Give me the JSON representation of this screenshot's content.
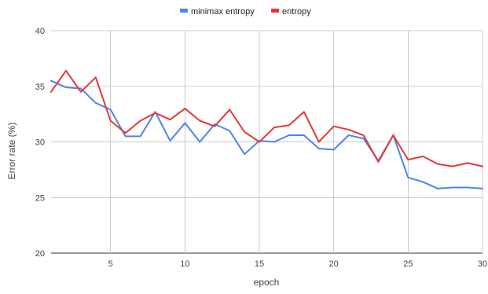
{
  "chart_data": {
    "type": "line",
    "title": "",
    "xlabel": "epoch",
    "ylabel": "Error rate (%)",
    "xlim": [
      1,
      30
    ],
    "ylim": [
      20,
      40
    ],
    "x_ticks": [
      5,
      10,
      15,
      20,
      25,
      30
    ],
    "y_ticks": [
      20,
      25,
      30,
      35,
      40
    ],
    "grid": true,
    "legend_position": "top",
    "x": [
      1,
      2,
      3,
      4,
      5,
      6,
      7,
      8,
      9,
      10,
      11,
      12,
      13,
      14,
      15,
      16,
      17,
      18,
      19,
      20,
      21,
      22,
      23,
      24,
      25,
      26,
      27,
      28,
      29,
      30
    ],
    "series": [
      {
        "name": "minimax entropy",
        "color": "#4a86e8",
        "values": [
          35.5,
          34.9,
          34.8,
          33.5,
          32.9,
          30.5,
          30.5,
          32.7,
          30.1,
          31.7,
          30.0,
          31.6,
          31.0,
          28.9,
          30.1,
          30.0,
          30.6,
          30.6,
          29.4,
          29.3,
          30.6,
          30.3,
          28.3,
          30.6,
          26.8,
          26.4,
          25.8,
          25.9,
          25.9,
          25.8
        ]
      },
      {
        "name": "entropy",
        "color": "#e53935",
        "values": [
          34.5,
          36.4,
          34.5,
          35.8,
          31.9,
          30.8,
          31.9,
          32.6,
          32.0,
          33.0,
          31.9,
          31.4,
          32.9,
          30.9,
          30.0,
          31.3,
          31.5,
          32.7,
          30.0,
          31.4,
          31.1,
          30.6,
          28.2,
          30.6,
          28.4,
          28.7,
          28.0,
          27.8,
          28.1,
          27.8
        ]
      }
    ]
  }
}
